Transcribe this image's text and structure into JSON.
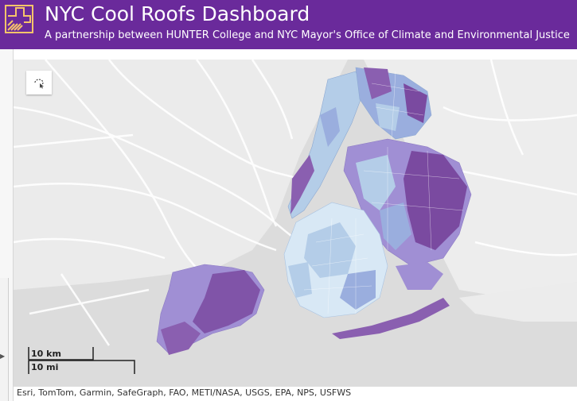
{
  "header": {
    "title": "NYC Cool Roofs Dashboard",
    "subtitle": "A partnership between HUNTER College and NYC Mayor's Office of Climate and Environmental Justice",
    "background_color": "#6a2a9b",
    "logo_icon": "building-hatch-logo"
  },
  "map": {
    "tool_icon": "lasso-select-icon",
    "scalebar": {
      "km_label": "10 km",
      "mi_label": "10 mi"
    },
    "attribution": "Esri, TomTom, Garmin, SafeGraph, FAO, METI/NASA, USGS, EPA, NPS, USFWS",
    "choropleth_colors": [
      "#d8e8f5",
      "#b4cde8",
      "#9aaede",
      "#a08fd4",
      "#8a5fb0",
      "#7a4aa0"
    ],
    "land_color": "#f2f2f2",
    "water_color": "#dcdcdc"
  }
}
